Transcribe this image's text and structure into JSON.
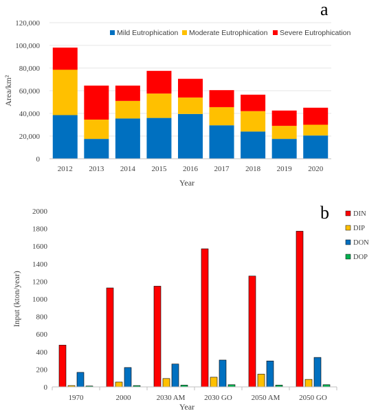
{
  "colors": {
    "mild": "#0070C0",
    "moderate": "#FFC000",
    "severe": "#FF0000",
    "DIN": "#FF0000",
    "DIP": "#FFC000",
    "DON": "#0070C0",
    "DOP": "#00B050",
    "axis": "#bfbfbf",
    "text": "#404040"
  },
  "chart_data": [
    {
      "type": "bar",
      "stacked": true,
      "panel_label": "a",
      "xlabel": "Year",
      "ylabel": "Area/km²",
      "ylim": [
        0,
        120000
      ],
      "yticks": [
        0,
        20000,
        40000,
        60000,
        80000,
        100000,
        120000
      ],
      "ytick_labels": [
        "0",
        "20,000",
        "40,000",
        "60,000",
        "80,000",
        "100,000",
        "120,000"
      ],
      "categories": [
        "2012",
        "2013",
        "2014",
        "2015",
        "2016",
        "2017",
        "2018",
        "2019",
        "2020"
      ],
      "legend_position": "top",
      "series": [
        {
          "name": "Mild Eutrophication",
          "color_key": "mild",
          "values": [
            38500,
            17500,
            35500,
            36000,
            39500,
            29500,
            24000,
            17500,
            20500
          ]
        },
        {
          "name": "Moderate Eutrophication",
          "color_key": "moderate",
          "values": [
            40000,
            17000,
            15500,
            21500,
            14500,
            16000,
            18000,
            11500,
            9500
          ]
        },
        {
          "name": "Severe Eutrophication",
          "color_key": "severe",
          "values": [
            19500,
            30000,
            13500,
            20000,
            16500,
            15000,
            14500,
            13500,
            15000
          ]
        }
      ]
    },
    {
      "type": "bar",
      "stacked": false,
      "panel_label": "b",
      "xlabel": "Year",
      "ylabel": "Input (kton/year)",
      "ylim": [
        0,
        2000
      ],
      "yticks": [
        0,
        200,
        400,
        600,
        800,
        1000,
        1200,
        1400,
        1600,
        1800,
        2000
      ],
      "ytick_labels": [
        "0",
        "200",
        "400",
        "600",
        "800",
        "1000",
        "1200",
        "1400",
        "1600",
        "1800",
        "2000"
      ],
      "categories": [
        "1970",
        "2000",
        "2030 AM",
        "2030 GO",
        "2050 AM",
        "2050 GO"
      ],
      "legend_position": "right",
      "series": [
        {
          "name": "DIN",
          "color_key": "DIN",
          "values": [
            475,
            1125,
            1145,
            1570,
            1260,
            1770
          ]
        },
        {
          "name": "DIP",
          "color_key": "DIP",
          "values": [
            15,
            55,
            95,
            110,
            145,
            85
          ]
        },
        {
          "name": "DON",
          "color_key": "DON",
          "values": [
            165,
            220,
            260,
            305,
            295,
            335
          ]
        },
        {
          "name": "DOP",
          "color_key": "DOP",
          "values": [
            10,
            15,
            20,
            25,
            20,
            25
          ]
        }
      ]
    }
  ]
}
